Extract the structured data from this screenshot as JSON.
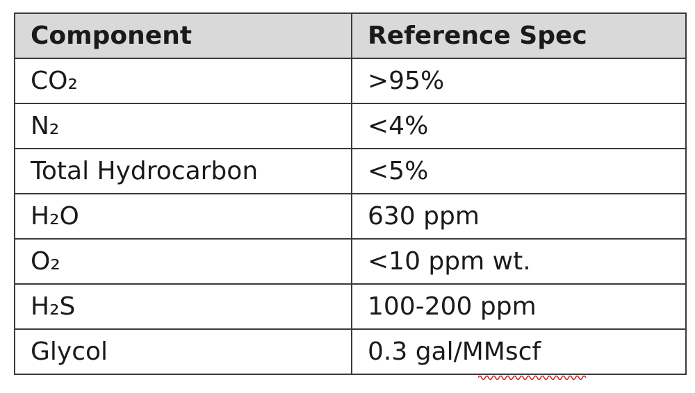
{
  "table": {
    "header": [
      "Component",
      "Reference Spec"
    ],
    "rows": [
      [
        "CO₂",
        ">95%"
      ],
      [
        "N₂",
        "<4%"
      ],
      [
        "Total Hydrocarbon",
        "<5%"
      ],
      [
        "H₂O",
        "630 ppm"
      ],
      [
        "O₂",
        "<10 ppm wt."
      ],
      [
        "H₂S",
        "100-200 ppm"
      ],
      [
        "Glycol",
        "0.3 gal/MMscf"
      ]
    ]
  }
}
